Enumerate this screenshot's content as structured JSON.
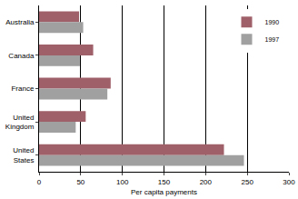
{
  "chart_data": {
    "type": "bar",
    "orientation": "horizontal",
    "x_label": "Per capita payments",
    "categories": [
      "Australia",
      "Canada",
      "France",
      "United Kingdom",
      "United States"
    ],
    "series": [
      {
        "name": "1990",
        "color": "#a0606a",
        "values": [
          48,
          65,
          86,
          56,
          222
        ]
      },
      {
        "name": "1997",
        "color": "#a0a0a0",
        "values": [
          53,
          49,
          82,
          44,
          246
        ]
      }
    ],
    "xlim": [
      0,
      300
    ],
    "xticks": [
      0,
      50,
      100,
      150,
      200,
      250,
      300
    ],
    "grid": true,
    "legend": "top right"
  }
}
